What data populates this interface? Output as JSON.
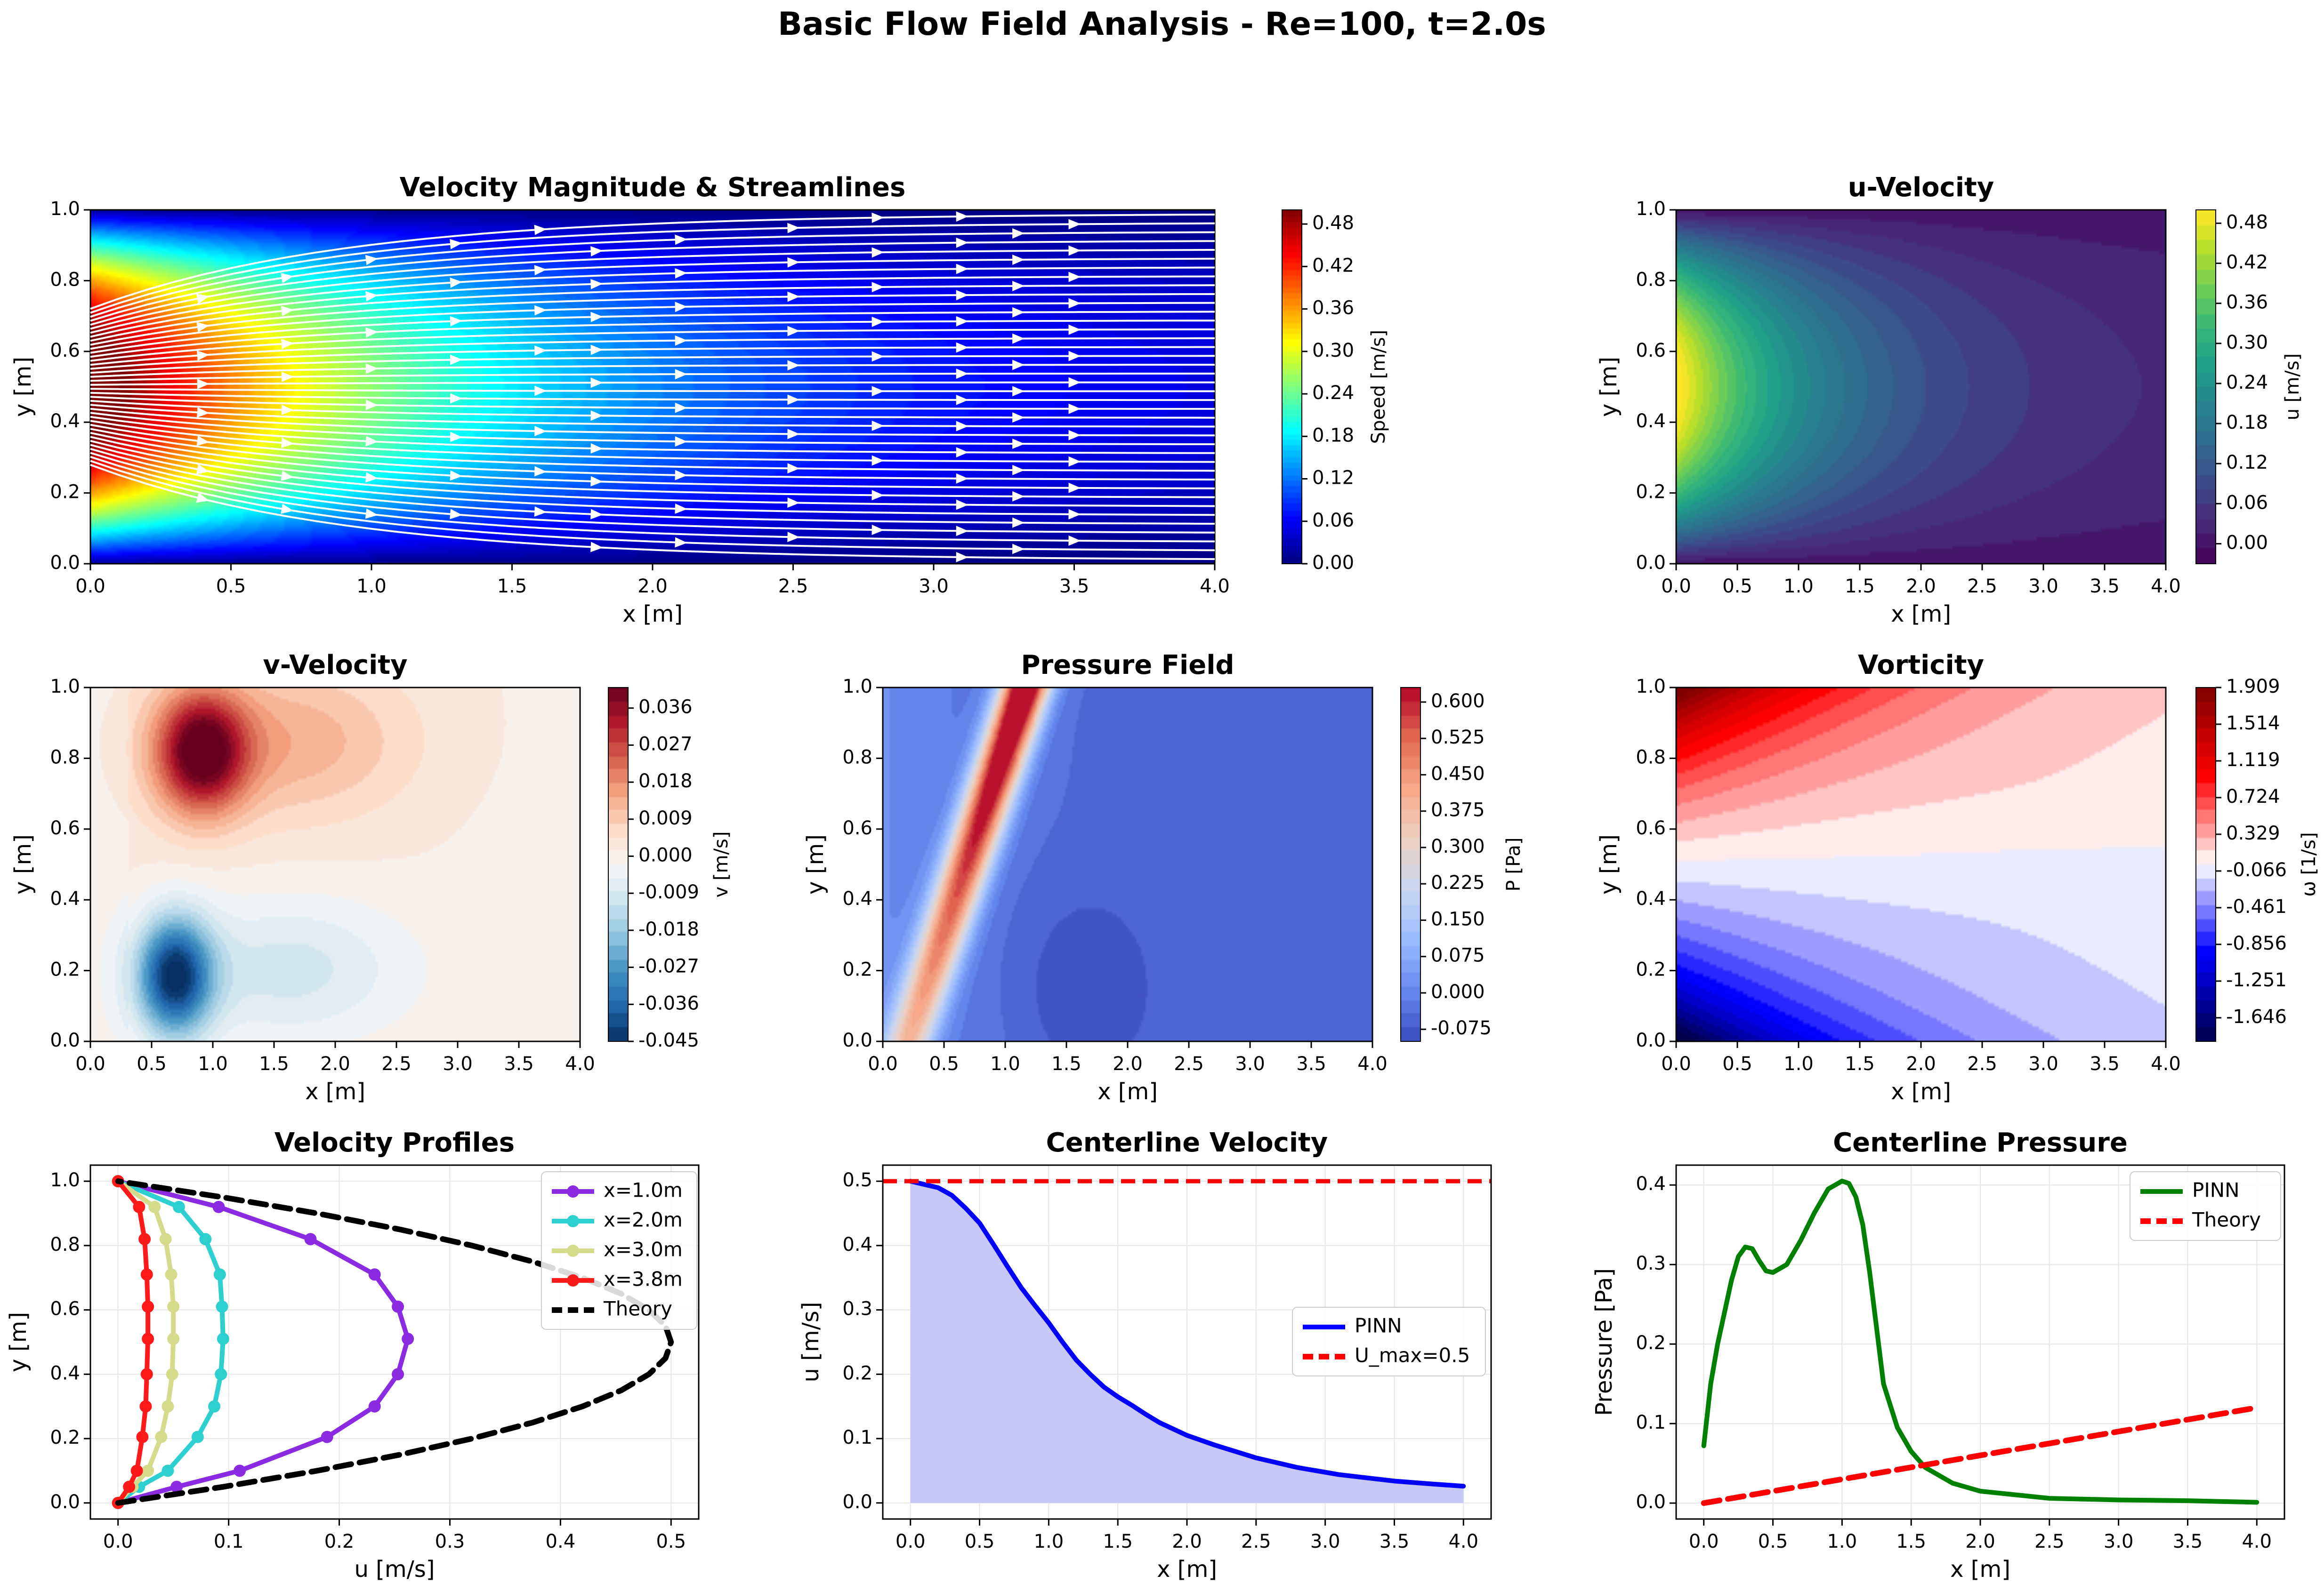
{
  "figure": {
    "title": "Basic Flow Field Analysis - Re=100, t=2.0s"
  },
  "colormaps": {
    "jet": [
      "#00007f",
      "#0000ff",
      "#007fff",
      "#00ffff",
      "#7fff7f",
      "#ffff00",
      "#ff7f00",
      "#ff0000",
      "#7f0000"
    ],
    "viridis": [
      "#440154",
      "#482878",
      "#3e4989",
      "#31688e",
      "#26828e",
      "#1f9e89",
      "#35b779",
      "#6ece58",
      "#b5de2b",
      "#fde725"
    ],
    "rdbu_r": [
      "#053061",
      "#2166ac",
      "#4393c3",
      "#92c5de",
      "#d1e5f0",
      "#f7f7f7",
      "#fddbc7",
      "#f4a582",
      "#d6604d",
      "#b2182b",
      "#67001f"
    ],
    "coolwarm": [
      "#3b4cc0",
      "#6788ee",
      "#9abbff",
      "#c9d7f0",
      "#edd1c2",
      "#f7a889",
      "#e26952",
      "#b40426"
    ],
    "seismic": [
      "#00004c",
      "#0000ff",
      "#ffffff",
      "#ff0000",
      "#7f0000"
    ],
    "colors": {
      "x1": "#8a2be2",
      "x2": "#2ecfcf",
      "x3": "#d4dc8c",
      "x4": "#ff1a1a",
      "theory": "#000000",
      "pinn_blue": "#0000ff",
      "umax_red": "#ff0000",
      "pinn_green": "#008000",
      "fill": "#c8c8f8"
    }
  },
  "chart_data": [
    {
      "id": "speed",
      "type": "heatmap",
      "title": "Velocity Magnitude & Streamlines",
      "xlabel": "x [m]",
      "ylabel": "y [m]",
      "xlim": [
        0,
        4
      ],
      "ylim": [
        0,
        1
      ],
      "xticks": [
        "0.0",
        "0.5",
        "1.0",
        "1.5",
        "2.0",
        "2.5",
        "3.0",
        "3.5",
        "4.0"
      ],
      "yticks": [
        "0.0",
        "0.2",
        "0.4",
        "0.6",
        "0.8",
        "1.0"
      ],
      "colorbar": {
        "label": "Speed [m/s]",
        "ticks": [
          "0.00",
          "0.06",
          "0.12",
          "0.18",
          "0.24",
          "0.30",
          "0.36",
          "0.42",
          "0.48"
        ],
        "range": [
          0,
          0.5
        ],
        "cmap": "jet"
      },
      "overlay": "white streamlines flowing left to right"
    },
    {
      "id": "u",
      "type": "heatmap",
      "title": "u-Velocity",
      "xlabel": "x [m]",
      "ylabel": "y [m]",
      "xlim": [
        0,
        4
      ],
      "ylim": [
        0,
        1
      ],
      "xticks": [
        "0.0",
        "0.5",
        "1.0",
        "1.5",
        "2.0",
        "2.5",
        "3.0",
        "3.5",
        "4.0"
      ],
      "yticks": [
        "0.0",
        "0.2",
        "0.4",
        "0.6",
        "0.8",
        "1.0"
      ],
      "colorbar": {
        "label": "u [m/s]",
        "ticks": [
          "0.00",
          "0.06",
          "0.12",
          "0.18",
          "0.24",
          "0.30",
          "0.36",
          "0.42",
          "0.48"
        ],
        "range": [
          -0.03,
          0.5
        ],
        "cmap": "viridis"
      }
    },
    {
      "id": "v",
      "type": "heatmap",
      "title": "v-Velocity",
      "xlabel": "x [m]",
      "ylabel": "y [m]",
      "xlim": [
        0,
        4
      ],
      "ylim": [
        0,
        1
      ],
      "xticks": [
        "0.0",
        "0.5",
        "1.0",
        "1.5",
        "2.0",
        "2.5",
        "3.0",
        "3.5",
        "4.0"
      ],
      "yticks": [
        "0.0",
        "0.2",
        "0.4",
        "0.6",
        "0.8",
        "1.0"
      ],
      "colorbar": {
        "label": "v [m/s]",
        "ticks": [
          "-0.045",
          "-0.036",
          "-0.027",
          "-0.018",
          "-0.009",
          "0.000",
          "0.009",
          "0.018",
          "0.027",
          "0.036"
        ],
        "range": [
          -0.045,
          0.041
        ],
        "cmap": "rdbu_r"
      }
    },
    {
      "id": "p",
      "type": "heatmap",
      "title": "Pressure Field",
      "xlabel": "x [m]",
      "ylabel": "y [m]",
      "xlim": [
        0,
        4
      ],
      "ylim": [
        0,
        1
      ],
      "xticks": [
        "0.0",
        "0.5",
        "1.0",
        "1.5",
        "2.0",
        "2.5",
        "3.0",
        "3.5",
        "4.0"
      ],
      "yticks": [
        "0.0",
        "0.2",
        "0.4",
        "0.6",
        "0.8",
        "1.0"
      ],
      "colorbar": {
        "label": "P [Pa]",
        "ticks": [
          "-0.075",
          "0.000",
          "0.075",
          "0.150",
          "0.225",
          "0.300",
          "0.375",
          "0.450",
          "0.525",
          "0.600"
        ],
        "range": [
          -0.1,
          0.63
        ],
        "cmap": "coolwarm"
      }
    },
    {
      "id": "w",
      "type": "heatmap",
      "title": "Vorticity",
      "xlabel": "x [m]",
      "ylabel": "y [m]",
      "xlim": [
        0,
        4
      ],
      "ylim": [
        0,
        1
      ],
      "xticks": [
        "0.0",
        "0.5",
        "1.0",
        "1.5",
        "2.0",
        "2.5",
        "3.0",
        "3.5",
        "4.0"
      ],
      "yticks": [
        "0.0",
        "0.2",
        "0.4",
        "0.6",
        "0.8",
        "1.0"
      ],
      "colorbar": {
        "label": "ω [1/s]",
        "ticks": [
          "-1.646",
          "-1.251",
          "-0.856",
          "-0.461",
          "-0.066",
          "0.329",
          "0.724",
          "1.119",
          "1.514",
          "1.909"
        ],
        "range": [
          -1.9,
          1.909
        ],
        "cmap": "seismic"
      }
    },
    {
      "id": "profiles",
      "type": "line",
      "title": "Velocity Profiles",
      "xlabel": "u [m/s]",
      "ylabel": "y [m]",
      "xlim": [
        -0.025,
        0.525
      ],
      "ylim": [
        -0.05,
        1.05
      ],
      "xticks": [
        0,
        0.1,
        0.2,
        0.3,
        0.4,
        0.5
      ],
      "xtick_labels": [
        "0.0",
        "0.1",
        "0.2",
        "0.3",
        "0.4",
        "0.5"
      ],
      "yticks": [
        0,
        0.2,
        0.4,
        0.6,
        0.8,
        1.0
      ],
      "ytick_labels": [
        "0.0",
        "0.2",
        "0.4",
        "0.6",
        "0.8",
        "1.0"
      ],
      "legend": "top-right",
      "series": [
        {
          "name": "x=1.0m",
          "color": "#8a2be2",
          "markers": true,
          "points": [
            [
              0,
              0
            ],
            [
              0.053,
              0.05
            ],
            [
              0.11,
              0.1
            ],
            [
              0.189,
              0.205
            ],
            [
              0.232,
              0.3
            ],
            [
              0.253,
              0.4
            ],
            [
              0.262,
              0.51
            ],
            [
              0.253,
              0.61
            ],
            [
              0.232,
              0.71
            ],
            [
              0.174,
              0.82
            ],
            [
              0.091,
              0.92
            ],
            [
              0.0,
              1.0
            ]
          ]
        },
        {
          "name": "x=2.0m",
          "color": "#2ecfcf",
          "markers": true,
          "points": [
            [
              0,
              0
            ],
            [
              0.019,
              0.05
            ],
            [
              0.045,
              0.1
            ],
            [
              0.072,
              0.205
            ],
            [
              0.087,
              0.3
            ],
            [
              0.093,
              0.4
            ],
            [
              0.095,
              0.51
            ],
            [
              0.094,
              0.61
            ],
            [
              0.092,
              0.71
            ],
            [
              0.079,
              0.82
            ],
            [
              0.055,
              0.92
            ],
            [
              0.0,
              1.0
            ]
          ]
        },
        {
          "name": "x=3.0m",
          "color": "#d4dc8c",
          "markers": true,
          "points": [
            [
              0,
              0
            ],
            [
              0.013,
              0.05
            ],
            [
              0.027,
              0.1
            ],
            [
              0.039,
              0.205
            ],
            [
              0.045,
              0.3
            ],
            [
              0.049,
              0.4
            ],
            [
              0.05,
              0.51
            ],
            [
              0.05,
              0.61
            ],
            [
              0.048,
              0.71
            ],
            [
              0.043,
              0.82
            ],
            [
              0.033,
              0.92
            ],
            [
              0.0,
              1.0
            ]
          ]
        },
        {
          "name": "x=3.8m",
          "color": "#ff1a1a",
          "markers": true,
          "points": [
            [
              0,
              0
            ],
            [
              0.01,
              0.05
            ],
            [
              0.017,
              0.1
            ],
            [
              0.022,
              0.205
            ],
            [
              0.025,
              0.3
            ],
            [
              0.026,
              0.4
            ],
            [
              0.027,
              0.51
            ],
            [
              0.027,
              0.61
            ],
            [
              0.026,
              0.71
            ],
            [
              0.024,
              0.82
            ],
            [
              0.019,
              0.92
            ],
            [
              0.0,
              1.0
            ]
          ]
        },
        {
          "name": "Theory",
          "color": "#000000",
          "dashed": true,
          "formula": "u=2*y*(1-y)",
          "points": [
            [
              0,
              0
            ],
            [
              0.095,
              0.05
            ],
            [
              0.18,
              0.1
            ],
            [
              0.255,
              0.15
            ],
            [
              0.32,
              0.2
            ],
            [
              0.375,
              0.25
            ],
            [
              0.42,
              0.3
            ],
            [
              0.455,
              0.35
            ],
            [
              0.48,
              0.4
            ],
            [
              0.495,
              0.45
            ],
            [
              0.5,
              0.5
            ],
            [
              0.495,
              0.55
            ],
            [
              0.48,
              0.6
            ],
            [
              0.455,
              0.65
            ],
            [
              0.42,
              0.7
            ],
            [
              0.375,
              0.75
            ],
            [
              0.32,
              0.8
            ],
            [
              0.255,
              0.85
            ],
            [
              0.18,
              0.9
            ],
            [
              0.095,
              0.95
            ],
            [
              0,
              1.0
            ]
          ]
        }
      ]
    },
    {
      "id": "centerline_u",
      "type": "line",
      "title": "Centerline Velocity",
      "xlabel": "x [m]",
      "ylabel": "u [m/s]",
      "xlim": [
        -0.2,
        4.2
      ],
      "ylim": [
        -0.025,
        0.525
      ],
      "xticks": [
        0,
        0.5,
        1,
        1.5,
        2,
        2.5,
        3,
        3.5,
        4
      ],
      "xtick_labels": [
        "0.0",
        "0.5",
        "1.0",
        "1.5",
        "2.0",
        "2.5",
        "3.0",
        "3.5",
        "4.0"
      ],
      "yticks": [
        0,
        0.1,
        0.2,
        0.3,
        0.4,
        0.5
      ],
      "ytick_labels": [
        "0.0",
        "0.1",
        "0.2",
        "0.3",
        "0.4",
        "0.5"
      ],
      "legend": "center-right",
      "series": [
        {
          "name": "PINN",
          "color": "#0000ff",
          "fill": "#c8c8f8",
          "points": [
            [
              0,
              0.5
            ],
            [
              0.1,
              0.495
            ],
            [
              0.2,
              0.49
            ],
            [
              0.3,
              0.478
            ],
            [
              0.4,
              0.458
            ],
            [
              0.5,
              0.435
            ],
            [
              0.6,
              0.402
            ],
            [
              0.7,
              0.368
            ],
            [
              0.8,
              0.335
            ],
            [
              0.9,
              0.307
            ],
            [
              1.0,
              0.28
            ],
            [
              1.1,
              0.25
            ],
            [
              1.2,
              0.222
            ],
            [
              1.3,
              0.2
            ],
            [
              1.4,
              0.18
            ],
            [
              1.5,
              0.165
            ],
            [
              1.6,
              0.152
            ],
            [
              1.7,
              0.138
            ],
            [
              1.8,
              0.125
            ],
            [
              2.0,
              0.105
            ],
            [
              2.2,
              0.09
            ],
            [
              2.5,
              0.07
            ],
            [
              2.8,
              0.055
            ],
            [
              3.1,
              0.044
            ],
            [
              3.5,
              0.034
            ],
            [
              3.8,
              0.029
            ],
            [
              4.0,
              0.026
            ]
          ]
        },
        {
          "name": "U_max=0.5",
          "color": "#ff0000",
          "dashed": true,
          "hline": 0.5
        }
      ]
    },
    {
      "id": "centerline_p",
      "type": "line",
      "title": "Centerline Pressure",
      "xlabel": "x [m]",
      "ylabel": "Pressure [Pa]",
      "xlim": [
        -0.2,
        4.2
      ],
      "ylim": [
        -0.02,
        0.425
      ],
      "xticks": [
        0,
        0.5,
        1,
        1.5,
        2,
        2.5,
        3,
        3.5,
        4
      ],
      "xtick_labels": [
        "0.0",
        "0.5",
        "1.0",
        "1.5",
        "2.0",
        "2.5",
        "3.0",
        "3.5",
        "4.0"
      ],
      "yticks": [
        0,
        0.1,
        0.2,
        0.3,
        0.4
      ],
      "ytick_labels": [
        "0.0",
        "0.1",
        "0.2",
        "0.3",
        "0.4"
      ],
      "legend": "top-right",
      "series": [
        {
          "name": "PINN",
          "color": "#008000",
          "points": [
            [
              0,
              0.072
            ],
            [
              0.05,
              0.15
            ],
            [
              0.1,
              0.2
            ],
            [
              0.15,
              0.24
            ],
            [
              0.2,
              0.28
            ],
            [
              0.25,
              0.31
            ],
            [
              0.3,
              0.322
            ],
            [
              0.35,
              0.32
            ],
            [
              0.4,
              0.305
            ],
            [
              0.45,
              0.292
            ],
            [
              0.5,
              0.29
            ],
            [
              0.6,
              0.3
            ],
            [
              0.7,
              0.33
            ],
            [
              0.8,
              0.365
            ],
            [
              0.9,
              0.395
            ],
            [
              1.0,
              0.405
            ],
            [
              1.05,
              0.402
            ],
            [
              1.1,
              0.385
            ],
            [
              1.15,
              0.35
            ],
            [
              1.2,
              0.29
            ],
            [
              1.25,
              0.22
            ],
            [
              1.3,
              0.15
            ],
            [
              1.4,
              0.095
            ],
            [
              1.5,
              0.065
            ],
            [
              1.6,
              0.045
            ],
            [
              1.8,
              0.025
            ],
            [
              2.0,
              0.015
            ],
            [
              2.5,
              0.006
            ],
            [
              3.0,
              0.004
            ],
            [
              3.5,
              0.003
            ],
            [
              4.0,
              0.001
            ]
          ]
        },
        {
          "name": "Theory",
          "color": "#ff0000",
          "dashed": true,
          "points": [
            [
              0,
              0
            ],
            [
              4.0,
              0.12
            ]
          ]
        }
      ]
    }
  ]
}
